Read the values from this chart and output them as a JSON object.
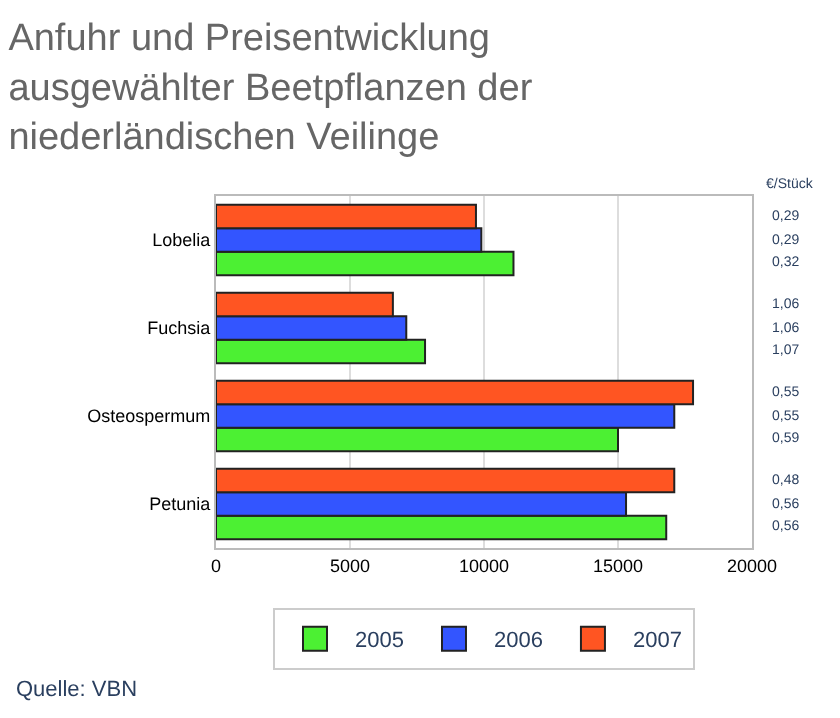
{
  "chart_data": {
    "type": "bar",
    "orientation": "horizontal",
    "title": "Anfuhr und Preisentwicklung ausgewählter Beetpflanzen der niederländischen Veilinge",
    "categories": [
      "Lobelia",
      "Fuchsia",
      "Osteospermum",
      "Petunia"
    ],
    "series": [
      {
        "name": "2005",
        "color": "#4cf033",
        "values": [
          11100,
          7800,
          15000,
          16800
        ]
      },
      {
        "name": "2006",
        "color": "#3355ff",
        "values": [
          9900,
          7100,
          17100,
          15300
        ]
      },
      {
        "name": "2007",
        "color": "#ff5522",
        "values": [
          9700,
          6600,
          17800,
          17100
        ]
      }
    ],
    "xlim": [
      0,
      20000
    ],
    "xticks": [
      0,
      5000,
      10000,
      15000,
      20000
    ],
    "grid": "x",
    "legend": "bottom",
    "annotations": [
      "€/Stück",
      "0,29",
      "0,29",
      "0,32",
      "1,06",
      "1,06",
      "1,07",
      "0,55",
      "0,55",
      "0,59",
      "0,48",
      "0,56",
      "0,56",
      "Quelle: VBN"
    ]
  }
}
